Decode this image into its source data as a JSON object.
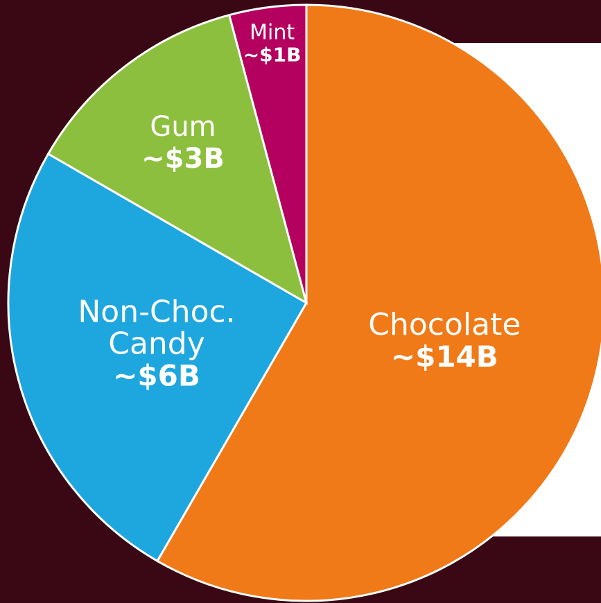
{
  "chart_data": {
    "type": "pie",
    "slices": [
      {
        "label": "Chocolate",
        "label_lines": [
          "Chocolate"
        ],
        "value_label": "~$14B",
        "value": 14,
        "color": "#f07a17"
      },
      {
        "label": "Non-Choc. Candy",
        "label_lines": [
          "Non-Choc.",
          "Candy"
        ],
        "value_label": "~$6B",
        "value": 6,
        "color": "#1ea6df"
      },
      {
        "label": "Gum",
        "label_lines": [
          "Gum"
        ],
        "value_label": "~$3B",
        "value": 3,
        "color": "#8dbf3e"
      },
      {
        "label": "Mint",
        "label_lines": [
          "Mint"
        ],
        "value_label": "~$1B",
        "value": 1,
        "color": "#b4005e"
      }
    ],
    "start": "top",
    "direction": "clockwise",
    "legend": "none"
  },
  "colors": {
    "background": "#3a0715",
    "panel": "#ffffff",
    "slice_border": "#ffffff"
  }
}
